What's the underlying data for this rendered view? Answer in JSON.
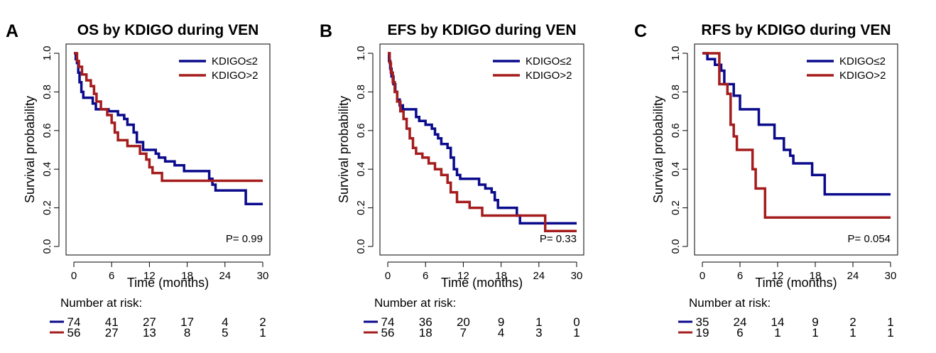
{
  "colors": {
    "series1": "#0a0a8c",
    "series2": "#a51c1c",
    "axis": "#000000"
  },
  "chart_data": [
    {
      "type": "line",
      "panel_letter": "A",
      "title": "OS by KDIGO during VEN",
      "xlabel": "Time (months)",
      "ylabel": "Survival probability",
      "xlim": [
        0,
        30
      ],
      "ylim": [
        0,
        1
      ],
      "xticks": [
        0,
        6,
        12,
        18,
        24,
        30
      ],
      "yticks": [
        "0.0",
        "0.2",
        "0.4",
        "0.6",
        "0.8",
        "1.0"
      ],
      "legend_position": "top-right",
      "p_value": "P= 0.99",
      "risk_table_title": "Number at risk:",
      "series": [
        {
          "name": "KDIGO≤2",
          "color": "#0a0a8c",
          "steps": [
            [
              0,
              1.0
            ],
            [
              0.3,
              0.97
            ],
            [
              0.5,
              0.95
            ],
            [
              0.7,
              0.9
            ],
            [
              0.9,
              0.85
            ],
            [
              1.2,
              0.8
            ],
            [
              1.5,
              0.77
            ],
            [
              3,
              0.74
            ],
            [
              3.5,
              0.71
            ],
            [
              5.5,
              0.7
            ],
            [
              7,
              0.68
            ],
            [
              8,
              0.66
            ],
            [
              8.5,
              0.63
            ],
            [
              9.5,
              0.59
            ],
            [
              10,
              0.54
            ],
            [
              11,
              0.5
            ],
            [
              13,
              0.48
            ],
            [
              13.5,
              0.46
            ],
            [
              14.5,
              0.44
            ],
            [
              16,
              0.42
            ],
            [
              17.5,
              0.39
            ],
            [
              21,
              0.39
            ],
            [
              21.5,
              0.35
            ],
            [
              22,
              0.32
            ],
            [
              22.5,
              0.29
            ],
            [
              27,
              0.29
            ],
            [
              27.3,
              0.22
            ],
            [
              30,
              0.22
            ]
          ],
          "risk": [
            "74",
            "41",
            "27",
            "17",
            "4",
            "2"
          ]
        },
        {
          "name": "KDIGO>2",
          "color": "#a51c1c",
          "steps": [
            [
              0,
              1.0
            ],
            [
              0.5,
              0.96
            ],
            [
              0.8,
              0.93
            ],
            [
              1.3,
              0.89
            ],
            [
              2,
              0.86
            ],
            [
              2.7,
              0.83
            ],
            [
              3.2,
              0.79
            ],
            [
              3.6,
              0.75
            ],
            [
              4.3,
              0.71
            ],
            [
              5.3,
              0.68
            ],
            [
              6,
              0.64
            ],
            [
              6.5,
              0.59
            ],
            [
              7,
              0.55
            ],
            [
              8.5,
              0.52
            ],
            [
              10.5,
              0.48
            ],
            [
              11.5,
              0.45
            ],
            [
              12,
              0.41
            ],
            [
              12.5,
              0.38
            ],
            [
              14,
              0.34
            ],
            [
              30,
              0.34
            ]
          ],
          "risk": [
            "56",
            "27",
            "13",
            "8",
            "5",
            "1"
          ]
        }
      ]
    },
    {
      "type": "line",
      "panel_letter": "B",
      "title": "EFS by KDIGO during VEN",
      "xlabel": "Time (months)",
      "ylabel": "Survival probability",
      "xlim": [
        0,
        30
      ],
      "ylim": [
        0,
        1
      ],
      "xticks": [
        0,
        6,
        12,
        18,
        24,
        30
      ],
      "yticks": [
        "0.0",
        "0.2",
        "0.4",
        "0.6",
        "0.8",
        "1.0"
      ],
      "legend_position": "top-right",
      "p_value": "P= 0.33",
      "risk_table_title": "Number at risk:",
      "series": [
        {
          "name": "KDIGO≤2",
          "color": "#0a0a8c",
          "steps": [
            [
              0,
              1.0
            ],
            [
              0.2,
              0.96
            ],
            [
              0.4,
              0.92
            ],
            [
              0.6,
              0.88
            ],
            [
              0.9,
              0.84
            ],
            [
              1.2,
              0.8
            ],
            [
              1.5,
              0.76
            ],
            [
              1.9,
              0.73
            ],
            [
              2.4,
              0.71
            ],
            [
              3,
              0.71
            ],
            [
              4.5,
              0.67
            ],
            [
              5,
              0.65
            ],
            [
              6,
              0.63
            ],
            [
              7,
              0.61
            ],
            [
              7.5,
              0.58
            ],
            [
              8,
              0.56
            ],
            [
              8.5,
              0.53
            ],
            [
              9.5,
              0.51
            ],
            [
              10,
              0.46
            ],
            [
              10.5,
              0.4
            ],
            [
              11,
              0.37
            ],
            [
              11.5,
              0.35
            ],
            [
              14,
              0.35
            ],
            [
              14.5,
              0.32
            ],
            [
              15.5,
              0.3
            ],
            [
              16.5,
              0.28
            ],
            [
              17,
              0.24
            ],
            [
              17.5,
              0.2
            ],
            [
              20,
              0.2
            ],
            [
              20.5,
              0.16
            ],
            [
              21,
              0.12
            ],
            [
              30,
              0.12
            ]
          ],
          "risk": [
            "74",
            "36",
            "20",
            "9",
            "1",
            "0"
          ]
        },
        {
          "name": "KDIGO>2",
          "color": "#a51c1c",
          "steps": [
            [
              0,
              1.0
            ],
            [
              0.3,
              0.95
            ],
            [
              0.5,
              0.9
            ],
            [
              0.8,
              0.85
            ],
            [
              1.1,
              0.8
            ],
            [
              1.5,
              0.75
            ],
            [
              2,
              0.7
            ],
            [
              2.5,
              0.66
            ],
            [
              3,
              0.61
            ],
            [
              3.5,
              0.56
            ],
            [
              4,
              0.51
            ],
            [
              4.5,
              0.48
            ],
            [
              5.5,
              0.46
            ],
            [
              6.5,
              0.43
            ],
            [
              7.5,
              0.4
            ],
            [
              8.5,
              0.37
            ],
            [
              9.5,
              0.33
            ],
            [
              10,
              0.28
            ],
            [
              11,
              0.23
            ],
            [
              13,
              0.2
            ],
            [
              15,
              0.16
            ],
            [
              24.5,
              0.16
            ],
            [
              25,
              0.08
            ],
            [
              30,
              0.08
            ]
          ],
          "risk": [
            "56",
            "18",
            "7",
            "4",
            "3",
            "1"
          ]
        }
      ]
    },
    {
      "type": "line",
      "panel_letter": "C",
      "title": "RFS by KDIGO during VEN",
      "xlabel": "Time (months)",
      "ylabel": "Survival probability",
      "xlim": [
        0,
        30
      ],
      "ylim": [
        0,
        1
      ],
      "xticks": [
        0,
        6,
        12,
        18,
        24,
        30
      ],
      "yticks": [
        "0.0",
        "0.2",
        "0.4",
        "0.6",
        "0.8",
        "1.0"
      ],
      "legend_position": "top-right",
      "p_value": "P= 0.054",
      "risk_table_title": "Number at risk:",
      "series": [
        {
          "name": "KDIGO≤2",
          "color": "#0a0a8c",
          "steps": [
            [
              0,
              1.0
            ],
            [
              0.8,
              0.97
            ],
            [
              2,
              0.94
            ],
            [
              3,
              0.91
            ],
            [
              3.5,
              0.84
            ],
            [
              5,
              0.78
            ],
            [
              6,
              0.71
            ],
            [
              9,
              0.63
            ],
            [
              11.5,
              0.56
            ],
            [
              13,
              0.5
            ],
            [
              14,
              0.47
            ],
            [
              14.5,
              0.43
            ],
            [
              17.5,
              0.37
            ],
            [
              19.5,
              0.27
            ],
            [
              30,
              0.27
            ]
          ],
          "risk": [
            "35",
            "24",
            "14",
            "9",
            "2",
            "1"
          ]
        },
        {
          "name": "KDIGO>2",
          "color": "#a51c1c",
          "steps": [
            [
              0,
              1.0
            ],
            [
              2.7,
              0.84
            ],
            [
              4,
              0.79
            ],
            [
              4.5,
              0.63
            ],
            [
              5,
              0.57
            ],
            [
              5.5,
              0.5
            ],
            [
              8,
              0.4
            ],
            [
              8.5,
              0.3
            ],
            [
              10,
              0.15
            ],
            [
              30,
              0.15
            ]
          ],
          "risk": [
            "19",
            "6",
            "1",
            "1",
            "1",
            "1"
          ]
        }
      ]
    }
  ]
}
